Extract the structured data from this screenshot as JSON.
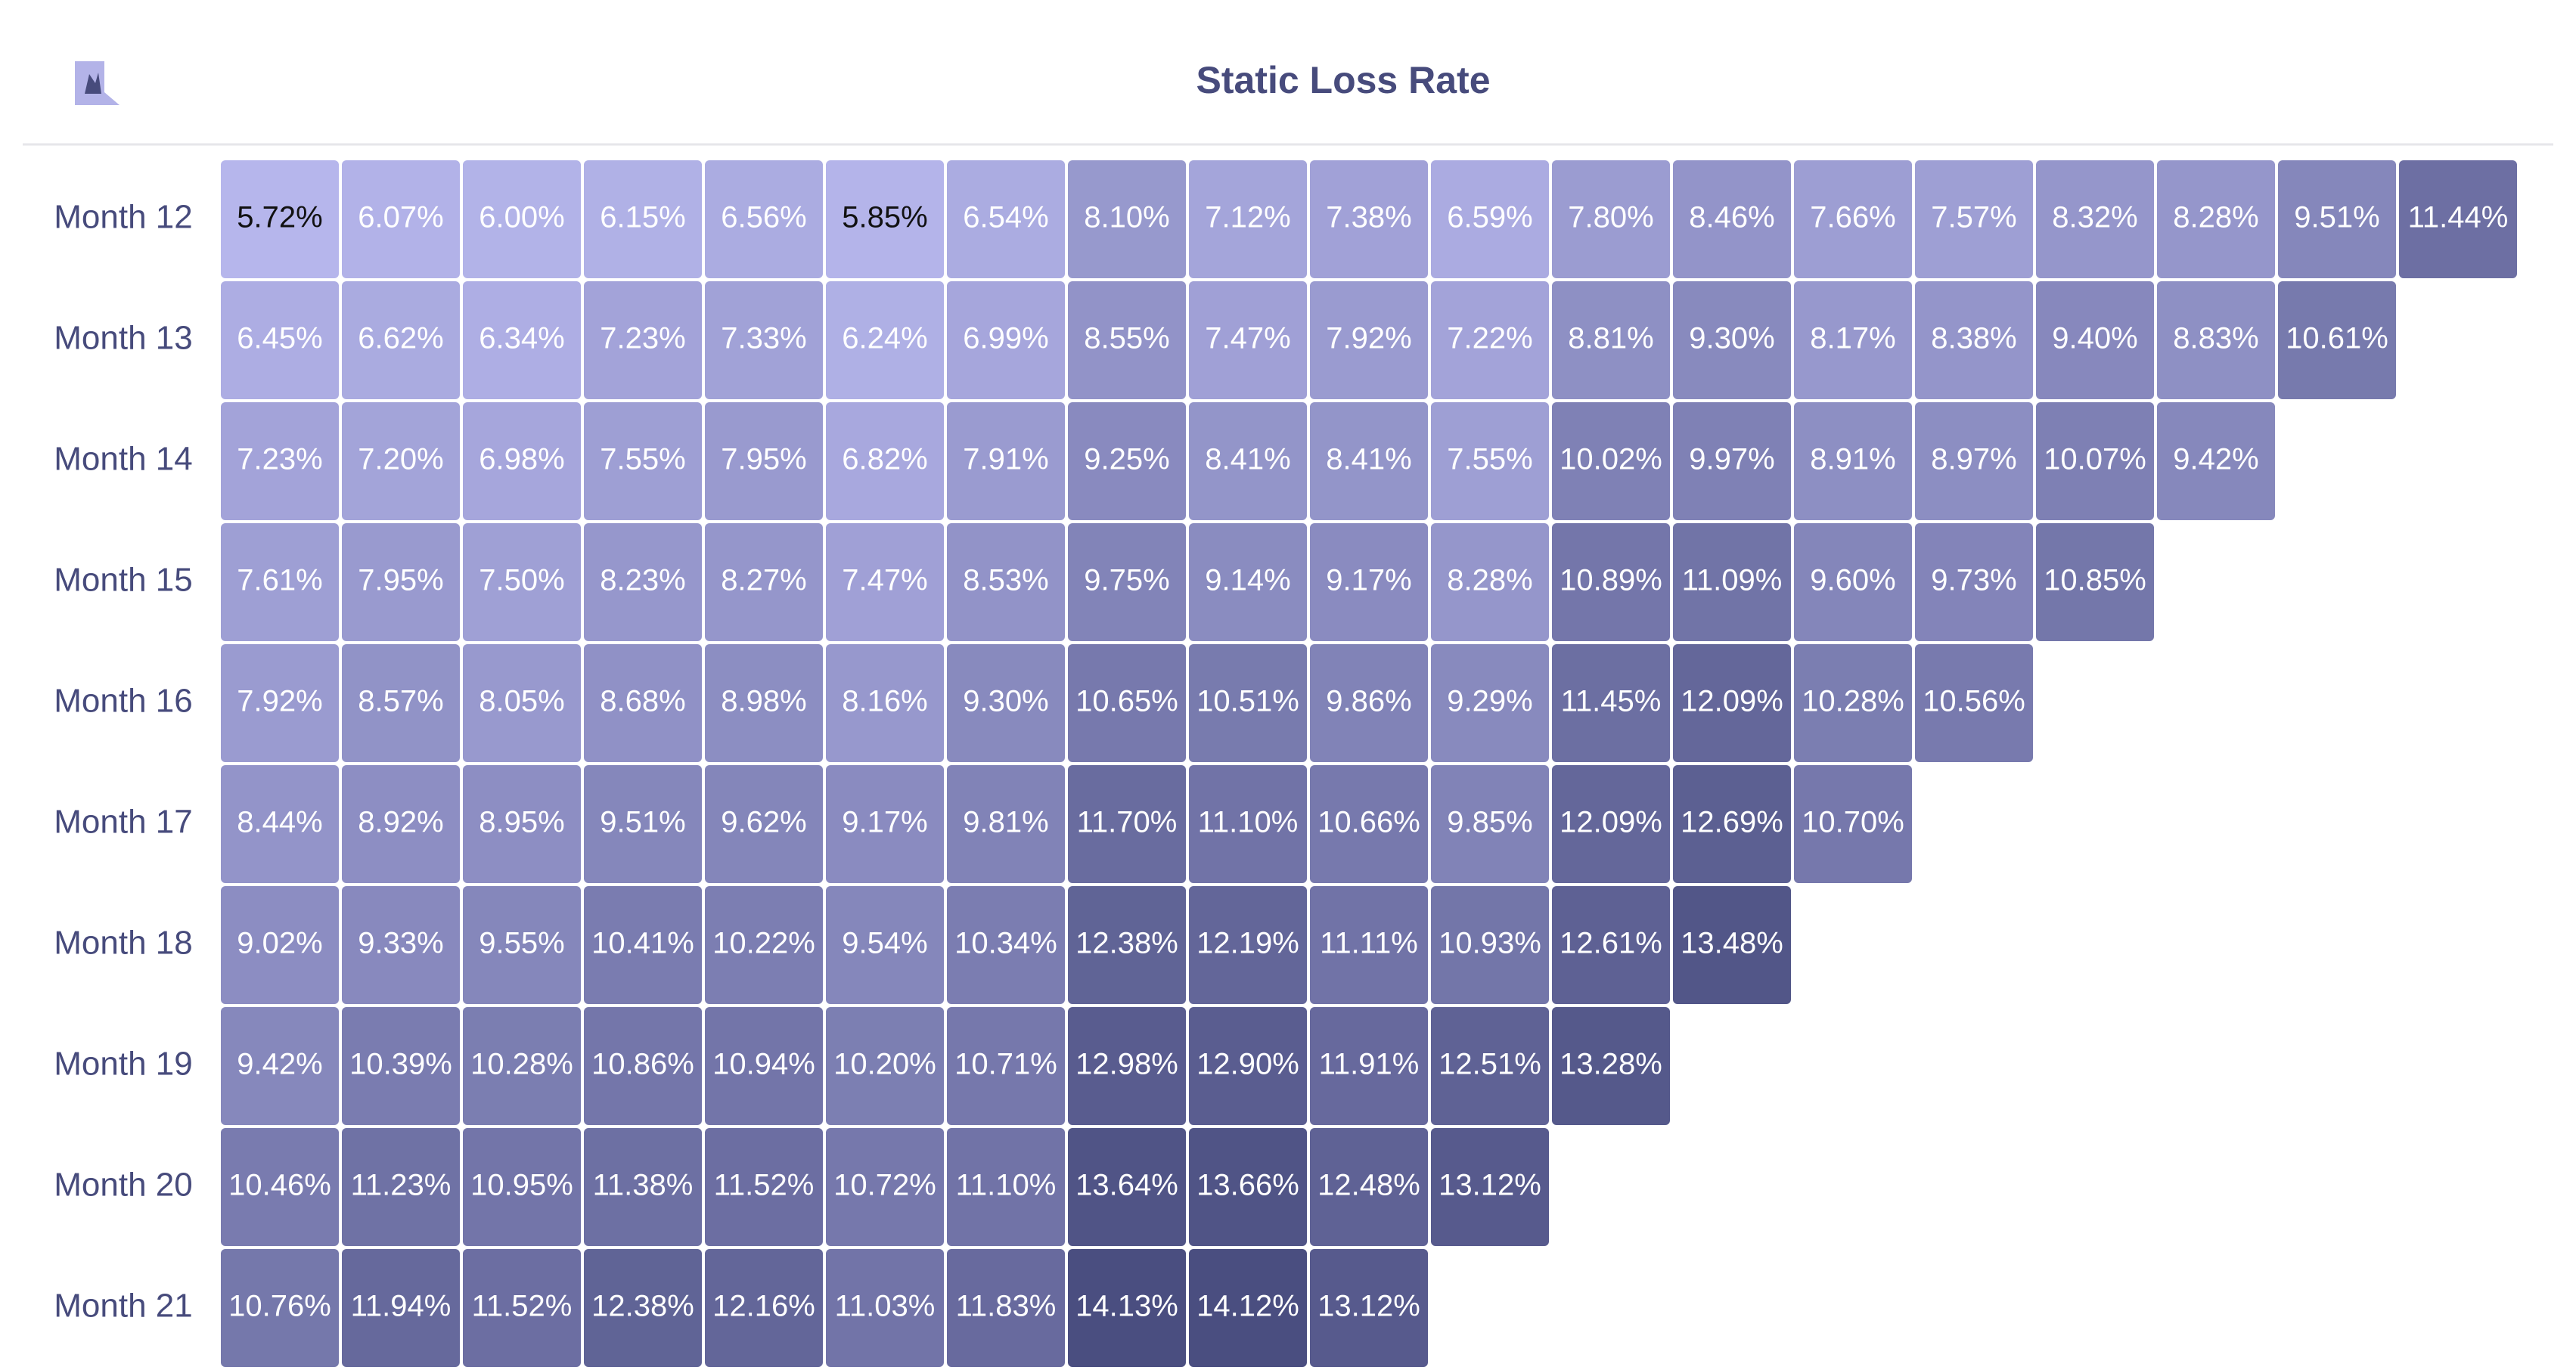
{
  "chart_data": {
    "type": "heatmap",
    "title": "Static Loss Rate",
    "rows": [
      "Month 12",
      "Month 13",
      "Month 14",
      "Month 15",
      "Month 16",
      "Month 17",
      "Month 18",
      "Month 19",
      "Month 20",
      "Month 21"
    ],
    "values": [
      [
        5.72,
        6.07,
        6.0,
        6.15,
        6.56,
        5.85,
        6.54,
        8.1,
        7.12,
        7.38,
        6.59,
        7.8,
        8.46,
        7.66,
        7.57,
        8.32,
        8.28,
        9.51,
        11.44
      ],
      [
        6.45,
        6.62,
        6.34,
        7.23,
        7.33,
        6.24,
        6.99,
        8.55,
        7.47,
        7.92,
        7.22,
        8.81,
        9.3,
        8.17,
        8.38,
        9.4,
        8.83,
        10.61
      ],
      [
        7.23,
        7.2,
        6.98,
        7.55,
        7.95,
        6.82,
        7.91,
        9.25,
        8.41,
        8.41,
        7.55,
        10.02,
        9.97,
        8.91,
        8.97,
        10.07,
        9.42
      ],
      [
        7.61,
        7.95,
        7.5,
        8.23,
        8.27,
        7.47,
        8.53,
        9.75,
        9.14,
        9.17,
        8.28,
        10.89,
        11.09,
        9.6,
        9.73,
        10.85
      ],
      [
        7.92,
        8.57,
        8.05,
        8.68,
        8.98,
        8.16,
        9.3,
        10.65,
        10.51,
        9.86,
        9.29,
        11.45,
        12.09,
        10.28,
        10.56
      ],
      [
        8.44,
        8.92,
        8.95,
        9.51,
        9.62,
        9.17,
        9.81,
        11.7,
        11.1,
        10.66,
        9.85,
        12.09,
        12.69,
        10.7
      ],
      [
        9.02,
        9.33,
        9.55,
        10.41,
        10.22,
        9.54,
        10.34,
        12.38,
        12.19,
        11.11,
        10.93,
        12.61,
        13.48
      ],
      [
        9.42,
        10.39,
        10.28,
        10.86,
        10.94,
        10.2,
        10.71,
        12.98,
        12.9,
        11.91,
        12.51,
        13.28
      ],
      [
        10.46,
        11.23,
        10.95,
        11.38,
        11.52,
        10.72,
        11.1,
        13.64,
        13.66,
        12.48,
        13.12
      ],
      [
        10.76,
        11.94,
        11.52,
        12.38,
        12.16,
        11.03,
        11.83,
        14.13,
        14.12,
        13.12
      ]
    ],
    "value_labels": [
      [
        "5.72%",
        "6.07%",
        "6.00%",
        "6.15%",
        "6.56%",
        "5.85%",
        "6.54%",
        "8.10%",
        "7.12%",
        "7.38%",
        "6.59%",
        "7.80%",
        "8.46%",
        "7.66%",
        "7.57%",
        "8.32%",
        "8.28%",
        "9.51%",
        "11.44%"
      ],
      [
        "6.45%",
        "6.62%",
        "6.34%",
        "7.23%",
        "7.33%",
        "6.24%",
        "6.99%",
        "8.55%",
        "7.47%",
        "7.92%",
        "7.22%",
        "8.81%",
        "9.30%",
        "8.17%",
        "8.38%",
        "9.40%",
        "8.83%",
        "10.61%"
      ],
      [
        "7.23%",
        "7.20%",
        "6.98%",
        "7.55%",
        "7.95%",
        "6.82%",
        "7.91%",
        "9.25%",
        "8.41%",
        "8.41%",
        "7.55%",
        "10.02%",
        "9.97%",
        "8.91%",
        "8.97%",
        "10.07%",
        "9.42%"
      ],
      [
        "7.61%",
        "7.95%",
        "7.50%",
        "8.23%",
        "8.27%",
        "7.47%",
        "8.53%",
        "9.75%",
        "9.14%",
        "9.17%",
        "8.28%",
        "10.89%",
        "11.09%",
        "9.60%",
        "9.73%",
        "10.85%"
      ],
      [
        "7.92%",
        "8.57%",
        "8.05%",
        "8.68%",
        "8.98%",
        "8.16%",
        "9.30%",
        "10.65%",
        "10.51%",
        "9.86%",
        "9.29%",
        "11.45%",
        "12.09%",
        "10.28%",
        "10.56%"
      ],
      [
        "8.44%",
        "8.92%",
        "8.95%",
        "9.51%",
        "9.62%",
        "9.17%",
        "9.81%",
        "11.70%",
        "11.10%",
        "10.66%",
        "9.85%",
        "12.09%",
        "12.69%",
        "10.70%"
      ],
      [
        "9.02%",
        "9.33%",
        "9.55%",
        "10.41%",
        "10.22%",
        "9.54%",
        "10.34%",
        "12.38%",
        "12.19%",
        "11.11%",
        "10.93%",
        "12.61%",
        "13.48%"
      ],
      [
        "9.42%",
        "10.39%",
        "10.28%",
        "10.86%",
        "10.94%",
        "10.20%",
        "10.71%",
        "12.98%",
        "12.90%",
        "11.91%",
        "12.51%",
        "13.28%"
      ],
      [
        "10.46%",
        "11.23%",
        "10.95%",
        "11.38%",
        "11.52%",
        "10.72%",
        "11.10%",
        "13.64%",
        "13.66%",
        "12.48%",
        "13.12%"
      ],
      [
        "10.76%",
        "11.94%",
        "11.52%",
        "12.38%",
        "12.16%",
        "11.03%",
        "11.83%",
        "14.13%",
        "14.12%",
        "13.12%"
      ]
    ],
    "color_range": [
      "#b6b6ec",
      "#4a4e80"
    ]
  }
}
